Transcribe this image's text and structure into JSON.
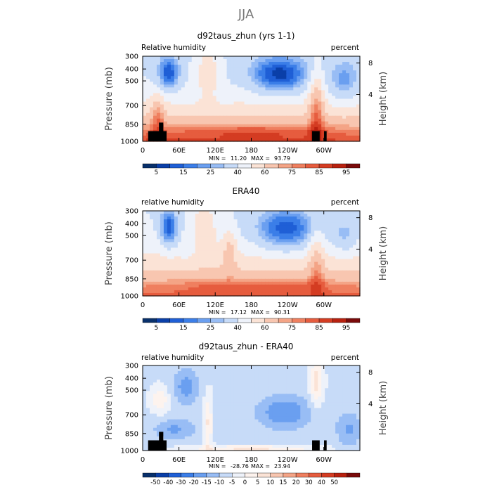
{
  "page": {
    "season_title": "JJA"
  },
  "palettes": {
    "humidity": [
      "#08306b",
      "#0a3fa8",
      "#1f5fd6",
      "#3b7ee8",
      "#6a9ff0",
      "#98bdf5",
      "#c7dbf8",
      "#eef2fa",
      "#fbe3d6",
      "#f8c6b0",
      "#f4a486",
      "#ef7f5f",
      "#e65c3e",
      "#d43c22",
      "#b8210f",
      "#7a0a0a"
    ],
    "difference": [
      "#08306b",
      "#0a3fa8",
      "#1f5fd6",
      "#3b7ee8",
      "#6a9ff0",
      "#98bdf5",
      "#c7dbf8",
      "#eef2fa",
      "#fdf3ee",
      "#fbe3d6",
      "#f8c6b0",
      "#f4a486",
      "#ef7f5f",
      "#e65c3e",
      "#d43c22",
      "#b8210f",
      "#7a0a0a"
    ],
    "land_mask": "#000000"
  },
  "chart_data": [
    {
      "type": "heatmap",
      "title": "d92taus_zhun (yrs 1-1)",
      "left_label": "Relative humidity",
      "right_label": "percent",
      "ylabel": "Pressure (mb)",
      "ylabel_right": "Height (km)",
      "x_ticks": [
        "0",
        "60E",
        "120E",
        "180",
        "120W",
        "60W"
      ],
      "y_ticks": [
        "300",
        "400",
        "500",
        "700",
        "850",
        "1000"
      ],
      "y_ticks_right": [
        "8",
        "4"
      ],
      "min_label": "MIN =",
      "min_value": "11.20",
      "max_label": "MAX =",
      "max_value": "93.79",
      "colorbar_labels": [
        "5",
        "15",
        "25",
        "40",
        "60",
        "75",
        "85",
        "95"
      ],
      "field": "humidity"
    },
    {
      "type": "heatmap",
      "title": "ERA40",
      "left_label": "relative humidity",
      "right_label": "percent",
      "ylabel": "Pressure (mb)",
      "ylabel_right": "Height (km)",
      "x_ticks": [
        "0",
        "60E",
        "120E",
        "180",
        "120W",
        "60W"
      ],
      "y_ticks": [
        "300",
        "400",
        "500",
        "700",
        "850",
        "1000"
      ],
      "y_ticks_right": [
        "8",
        "4"
      ],
      "min_label": "MIN =",
      "min_value": "17.12",
      "max_label": "MAX =",
      "max_value": "90.31",
      "colorbar_labels": [
        "5",
        "15",
        "25",
        "40",
        "60",
        "75",
        "85",
        "95"
      ],
      "field": "humidity_obs"
    },
    {
      "type": "heatmap",
      "title": "d92taus_zhun - ERA40",
      "left_label": "relative humidity",
      "right_label": "percent",
      "ylabel": "Pressure (mb)",
      "ylabel_right": "Height (km)",
      "x_ticks": [
        "0",
        "60E",
        "120E",
        "180",
        "120W",
        "60W"
      ],
      "y_ticks": [
        "300",
        "400",
        "500",
        "700",
        "850",
        "1000"
      ],
      "y_ticks_right": [
        "8",
        "4"
      ],
      "min_label": "MIN =",
      "min_value": "-28.76",
      "max_label": "MAX =",
      "max_value": "23.94",
      "colorbar_labels": [
        "-50",
        "-40",
        "-30",
        "-20",
        "-15",
        "-10",
        "-5",
        "0",
        "5",
        "10",
        "15",
        "20",
        "30",
        "40",
        "50"
      ],
      "field": "difference"
    }
  ]
}
